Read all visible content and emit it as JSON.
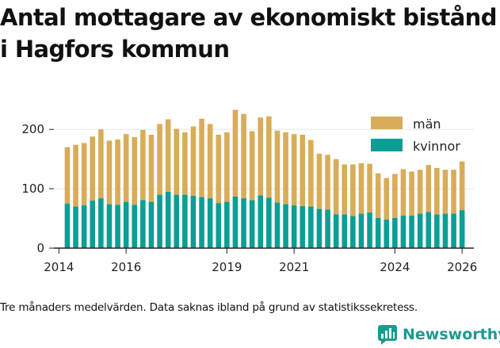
{
  "title_line1": "Antal mottagare av ekonomiskt bistånd",
  "title_line2": "i Hagfors kommun",
  "footnote": "Tre månaders medelvärden. Data saknas ibland på grund av statistikssekretess.",
  "brand": "Newsworthy",
  "colors": {
    "man": "#d8ac59",
    "kvinnor": "#0b9e94",
    "brand": "#1d9a8f",
    "axis": "#222222",
    "grid": "#e6e6e6"
  },
  "chart_data": {
    "type": "bar",
    "stacked": true,
    "title": "Antal mottagare av ekonomiskt bistånd i Hagfors kommun",
    "xlabel": "",
    "ylabel": "",
    "ylim": [
      0,
      235
    ],
    "yticks": [
      0,
      100,
      200
    ],
    "xlim": [
      2013.85,
      2026.35
    ],
    "xticks": [
      2014,
      2016,
      2019,
      2021,
      2024,
      2026
    ],
    "legend_position": "top-right",
    "x": [
      2014.25,
      2014.5,
      2014.75,
      2015.0,
      2015.25,
      2015.5,
      2015.75,
      2016.0,
      2016.25,
      2016.5,
      2016.75,
      2017.0,
      2017.25,
      2017.5,
      2017.75,
      2018.0,
      2018.25,
      2018.5,
      2018.75,
      2019.0,
      2019.25,
      2019.5,
      2019.75,
      2020.0,
      2020.25,
      2020.5,
      2020.75,
      2021.0,
      2021.25,
      2021.5,
      2021.75,
      2022.0,
      2022.25,
      2022.5,
      2022.75,
      2023.0,
      2023.25,
      2023.5,
      2023.75,
      2024.0,
      2024.25,
      2024.5,
      2024.75,
      2025.0,
      2025.25,
      2025.5,
      2025.75,
      2026.0
    ],
    "series": [
      {
        "name": "kvinnor",
        "values": [
          75,
          70,
          72,
          80,
          84,
          74,
          73,
          78,
          73,
          81,
          78,
          90,
          95,
          90,
          90,
          88,
          86,
          84,
          76,
          78,
          87,
          84,
          81,
          89,
          85,
          77,
          74,
          72,
          71,
          70,
          66,
          65,
          57,
          57,
          54,
          58,
          60,
          51,
          48,
          51,
          55,
          55,
          58,
          61,
          57,
          58,
          58,
          64
        ]
      },
      {
        "name": "män",
        "values": [
          95,
          104,
          105,
          108,
          116,
          107,
          110,
          114,
          114,
          118,
          113,
          119,
          122,
          111,
          105,
          117,
          132,
          125,
          115,
          117,
          146,
          142,
          116,
          131,
          137,
          121,
          121,
          120,
          120,
          112,
          93,
          92,
          93,
          84,
          87,
          85,
          82,
          75,
          70,
          74,
          78,
          74,
          74,
          79,
          78,
          74,
          74,
          82
        ]
      }
    ]
  }
}
